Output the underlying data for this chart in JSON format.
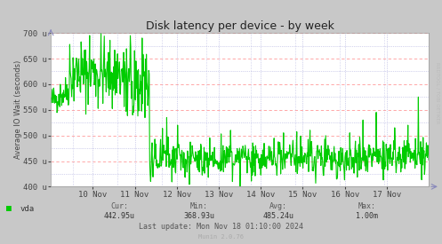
{
  "title": "Disk latency per device - by week",
  "ylabel": "Average IO Wait (seconds)",
  "background_color": "#c8c8c8",
  "plot_bg_color": "#ffffff",
  "grid_color_red": "#ff9999",
  "grid_color_blue": "#aaaadd",
  "line_color": "#00cc00",
  "ylim": [
    400,
    700
  ],
  "yticks": [
    400,
    450,
    500,
    550,
    600,
    650,
    700
  ],
  "ytick_labels": [
    "400 u",
    "450 u",
    "500 u",
    "550 u",
    "600 u",
    "650 u",
    "700 u"
  ],
  "xlabel_dates": [
    "10 Nov",
    "11 Nov",
    "12 Nov",
    "13 Nov",
    "14 Nov",
    "15 Nov",
    "16 Nov",
    "17 Nov"
  ],
  "legend_label": "vda",
  "legend_color": "#00cc00",
  "cur_val": "442.95u",
  "min_val": "368.93u",
  "avg_val": "485.24u",
  "max_val": "1.00m",
  "last_update": "Last update: Mon Nov 18 01:10:00 2024",
  "munin_text": "Munin 2.0.76",
  "rrdtool_text": "RRDTOOL / TOBI OETIKER",
  "title_fontsize": 9,
  "axis_fontsize": 6.5,
  "label_fontsize": 6,
  "num_points": 800
}
